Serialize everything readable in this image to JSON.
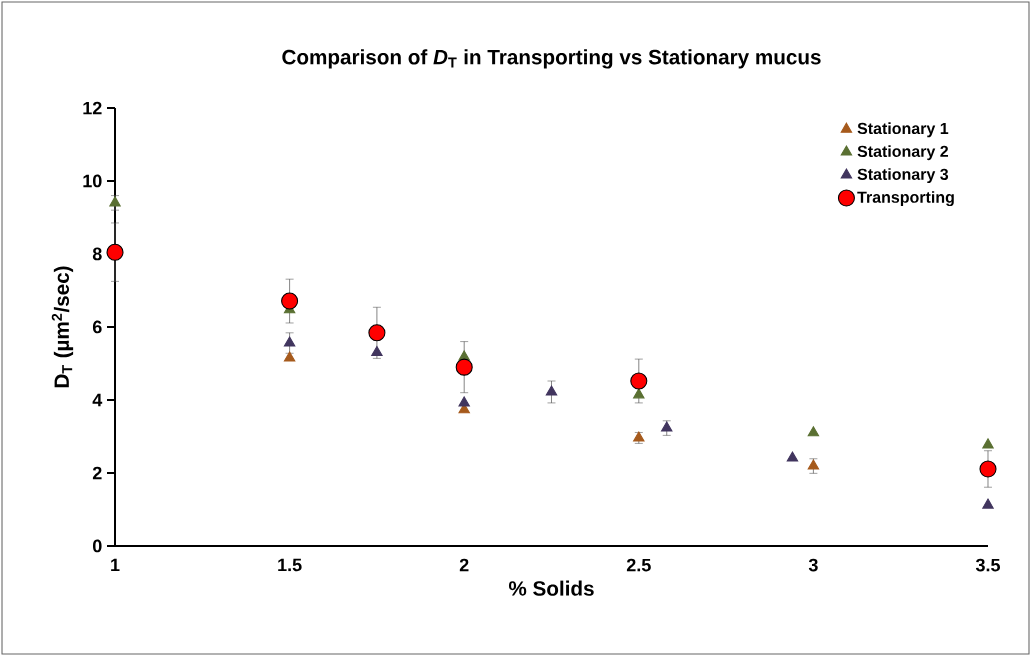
{
  "chart_data": {
    "type": "scatter",
    "title": "Comparison of *D*$_{T}$ in Transporting vs Stationary mucus",
    "xlabel": "% Solids",
    "ylabel": "D$_{T}$ (µm$^{2}$/sec)",
    "xlim": [
      1,
      3.5
    ],
    "xticks": [
      1,
      1.5,
      2,
      2.5,
      3,
      3.5
    ],
    "ylim": [
      0,
      12
    ],
    "yticks": [
      0,
      2,
      4,
      6,
      8,
      10,
      12
    ],
    "grid": false,
    "legend": "top right",
    "series": [
      {
        "name": "Stationary 1",
        "color": "#a65a1c",
        "marker": "triangle",
        "x": [
          1.5,
          2,
          2.5,
          3
        ],
        "values": [
          5.15,
          3.73,
          2.96,
          2.19
        ],
        "errors": [
          null,
          null,
          0.15,
          0.2
        ]
      },
      {
        "name": "Stationary 2",
        "color": "#5a7032",
        "marker": "triangle",
        "x": [
          1,
          1.5,
          2,
          2.5,
          3,
          3.5
        ],
        "values": [
          9.4,
          6.47,
          5.18,
          4.14,
          3.1,
          2.77
        ],
        "errors": [
          0.2,
          null,
          null,
          null,
          null,
          null
        ]
      },
      {
        "name": "Stationary 3",
        "color": "#41355e",
        "marker": "triangle",
        "x": [
          1.5,
          1.75,
          2,
          2.25,
          2.58,
          2.94,
          3.5
        ],
        "values": [
          5.56,
          5.3,
          3.92,
          4.22,
          3.23,
          2.41,
          1.12
        ],
        "errors": [
          0.28,
          null,
          null,
          0.3,
          0.2,
          null,
          null
        ]
      },
      {
        "name": "Transporting",
        "color": "#ff0000",
        "marker": "circle",
        "x": [
          1,
          1.5,
          1.75,
          2,
          2.5,
          3.5
        ],
        "values": [
          8.05,
          6.71,
          5.84,
          4.9,
          4.52,
          2.11
        ],
        "errors": [
          0.8,
          0.6,
          0.7,
          0.7,
          0.6,
          0.5
        ]
      }
    ]
  }
}
